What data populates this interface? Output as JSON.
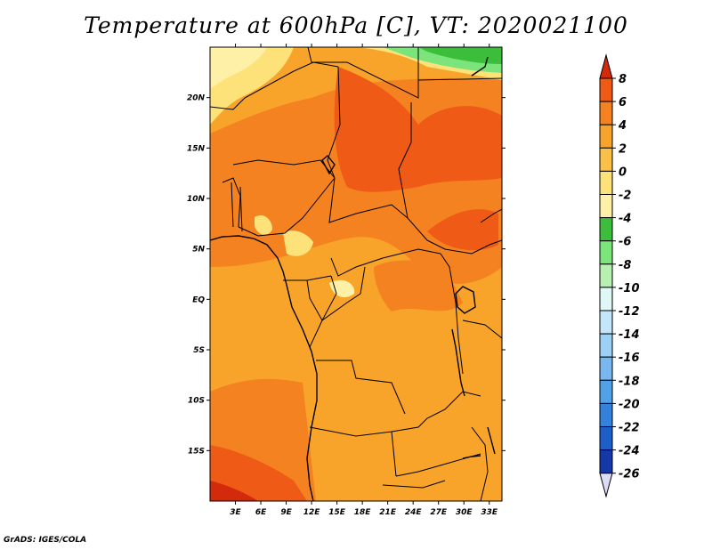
{
  "title": "Temperature at 600hPa [C], VT: 2020021100",
  "credit": "GrADS: IGES/COLA",
  "colors": {
    "light_yellow": "#fff0a8",
    "yellow": "#fde27a",
    "light_orange": "#fbc048",
    "orange": "#f8a42a",
    "dark_orange": "#f58220",
    "red_orange": "#ef5b16",
    "green": "#3cbe3c",
    "light_green": "#7be47b"
  },
  "map": {
    "lon_range": [
      0,
      34.5
    ],
    "lat_range": [
      -20,
      25
    ],
    "x_ticks": [
      "3E",
      "6E",
      "9E",
      "12E",
      "15E",
      "18E",
      "21E",
      "24E",
      "27E",
      "30E",
      "33E"
    ],
    "y_ticks": [
      "20N",
      "15N",
      "10N",
      "5N",
      "EQ",
      "5S",
      "10S",
      "15S"
    ]
  },
  "colorbar": {
    "labels": [
      "8",
      "6",
      "4",
      "2",
      "0",
      "-2",
      "-4",
      "-6",
      "-8",
      "-10",
      "-12",
      "-14",
      "-16",
      "-18",
      "-20",
      "-22",
      "-24",
      "-26"
    ],
    "colors": [
      "#d42a0c",
      "#ef5b16",
      "#f58220",
      "#f8a42a",
      "#fbc048",
      "#fde27a",
      "#fff0a8",
      "#3cbe3c",
      "#7be47b",
      "#b7f0b0",
      "#dff8f6",
      "#c4e6fa",
      "#9cd0f4",
      "#78b8ee",
      "#52a0e8",
      "#3482dc",
      "#1e5ec8",
      "#1438a8",
      "#0c1a78"
    ],
    "top_arrow_color": "#d42a0c",
    "bottom_arrow_color": "#dcdcf6"
  }
}
